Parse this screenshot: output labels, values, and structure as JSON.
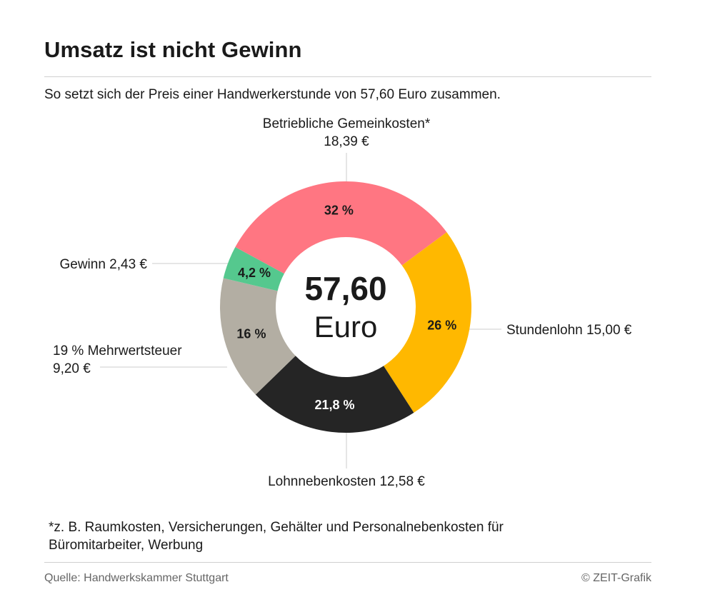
{
  "header": {
    "title": "Umsatz ist nicht Gewinn",
    "subtitle": "So setzt sich der Preis einer Handwerkerstunde von 57,60 Euro zusammen."
  },
  "chart_data": {
    "type": "pie",
    "variant": "donut",
    "total": 57.6,
    "center_label_value": "57,60",
    "center_label_unit": "Euro",
    "slices": [
      {
        "id": "gemeinkosten",
        "name": "Betriebliche Gemeinkosten*",
        "amount_label": "18,39 €",
        "value": 18.39,
        "percent": 32,
        "percent_label": "32 %",
        "color": "#ff7682",
        "pct_text_color": "#1a1a1a"
      },
      {
        "id": "stundenlohn",
        "name": "Stundenlohn",
        "amount_label": "15,00 €",
        "value": 15.0,
        "percent": 26,
        "percent_label": "26 %",
        "color": "#ffb800",
        "pct_text_color": "#1a1a1a"
      },
      {
        "id": "lohnnebenkosten",
        "name": "Lohnnebenkosten",
        "amount_label": "12,58 €",
        "value": 12.58,
        "percent": 21.8,
        "percent_label": "21,8 %",
        "color": "#252525",
        "pct_text_color": "#ffffff"
      },
      {
        "id": "mehrwertsteuer",
        "name": "19 % Mehrwertsteuer",
        "amount_label": "9,20 €",
        "value": 9.2,
        "percent": 16,
        "percent_label": "16 %",
        "color": "#b3aea3",
        "pct_text_color": "#1a1a1a"
      },
      {
        "id": "gewinn",
        "name": "Gewinn",
        "amount_label": "2,43 €",
        "value": 2.43,
        "percent": 4.2,
        "percent_label": "4,2 %",
        "color": "#55c88e",
        "pct_text_color": "#1a1a1a"
      }
    ],
    "labels": {
      "gemeinkosten_line1": "Betriebliche Gemeinkosten*",
      "gemeinkosten_line2": "18,39 €",
      "stundenlohn": "Stundenlohn 15,00 €",
      "lohnnebenkosten": "Lohnnebenkosten 12,58 €",
      "mehrwertsteuer_line1": "19 % Mehrwertsteuer",
      "mehrwertsteuer_line2": "9,20 €",
      "gewinn": "Gewinn 2,43 €"
    },
    "connector_color": "#cccccc"
  },
  "footer": {
    "footnote": "*z. B. Raumkosten, Versicherungen, Gehälter und Personalnebenkosten für Büromitarbeiter, Werbung",
    "source": "Quelle: Handwerkskammer Stuttgart",
    "credit": "© ZEIT-Grafik"
  }
}
